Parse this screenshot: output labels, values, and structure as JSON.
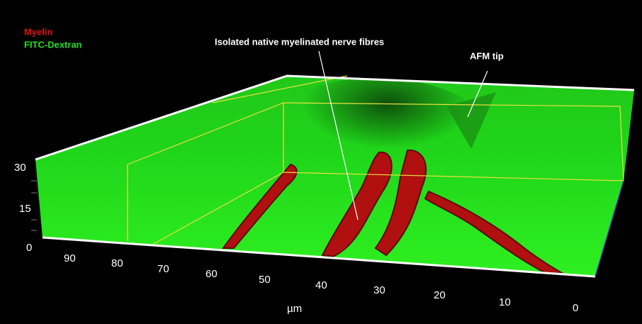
{
  "legend": [
    "Myelin",
    "FITC-Dextran"
  ],
  "annotations": [
    "Isolated native myelinated nerve fibres",
    "AFM tip"
  ],
  "z_axis": {
    "ticks": [
      "30",
      "15",
      "0"
    ]
  },
  "x_axis": {
    "label": "µm",
    "ticks": [
      "90",
      "80",
      "70",
      "60",
      "50",
      "40",
      "30",
      "20",
      "10",
      "0"
    ]
  }
}
